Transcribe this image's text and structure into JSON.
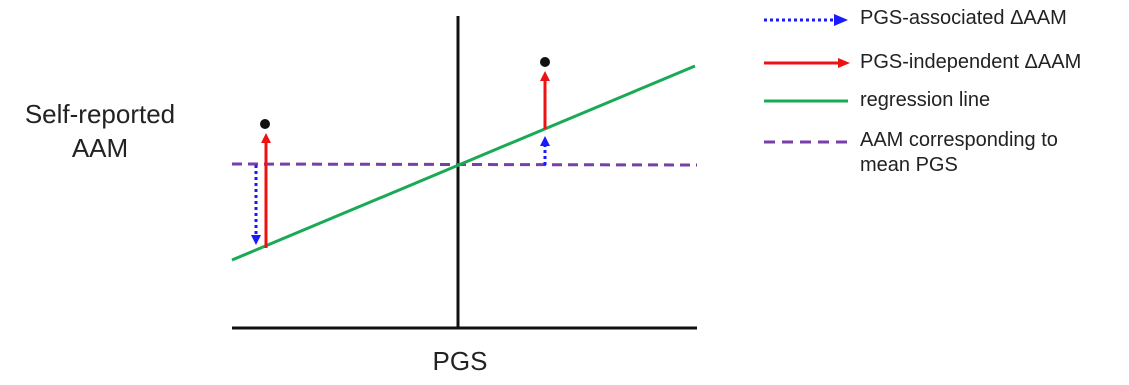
{
  "axes": {
    "y_label_lines": [
      "Self-reported",
      "AAM"
    ],
    "x_label": "PGS"
  },
  "legend": {
    "items": [
      {
        "key": "pgs_associated",
        "lines": [
          "PGS-associated ΔAAM"
        ],
        "color": "#1a1aff",
        "style": "dotted-arrow"
      },
      {
        "key": "pgs_independent",
        "lines": [
          "PGS-independent ΔAAM"
        ],
        "color": "#ee1111",
        "style": "solid-arrow"
      },
      {
        "key": "regression",
        "lines": [
          "regression line"
        ],
        "color": "#1aaa55",
        "style": "solid-line"
      },
      {
        "key": "mean_pgs",
        "lines": [
          "AAM corresponding to",
          "mean PGS"
        ],
        "color": "#7a3fa6",
        "style": "dashed-line"
      }
    ]
  },
  "colors": {
    "axis": "#111111",
    "point": "#111111"
  }
}
